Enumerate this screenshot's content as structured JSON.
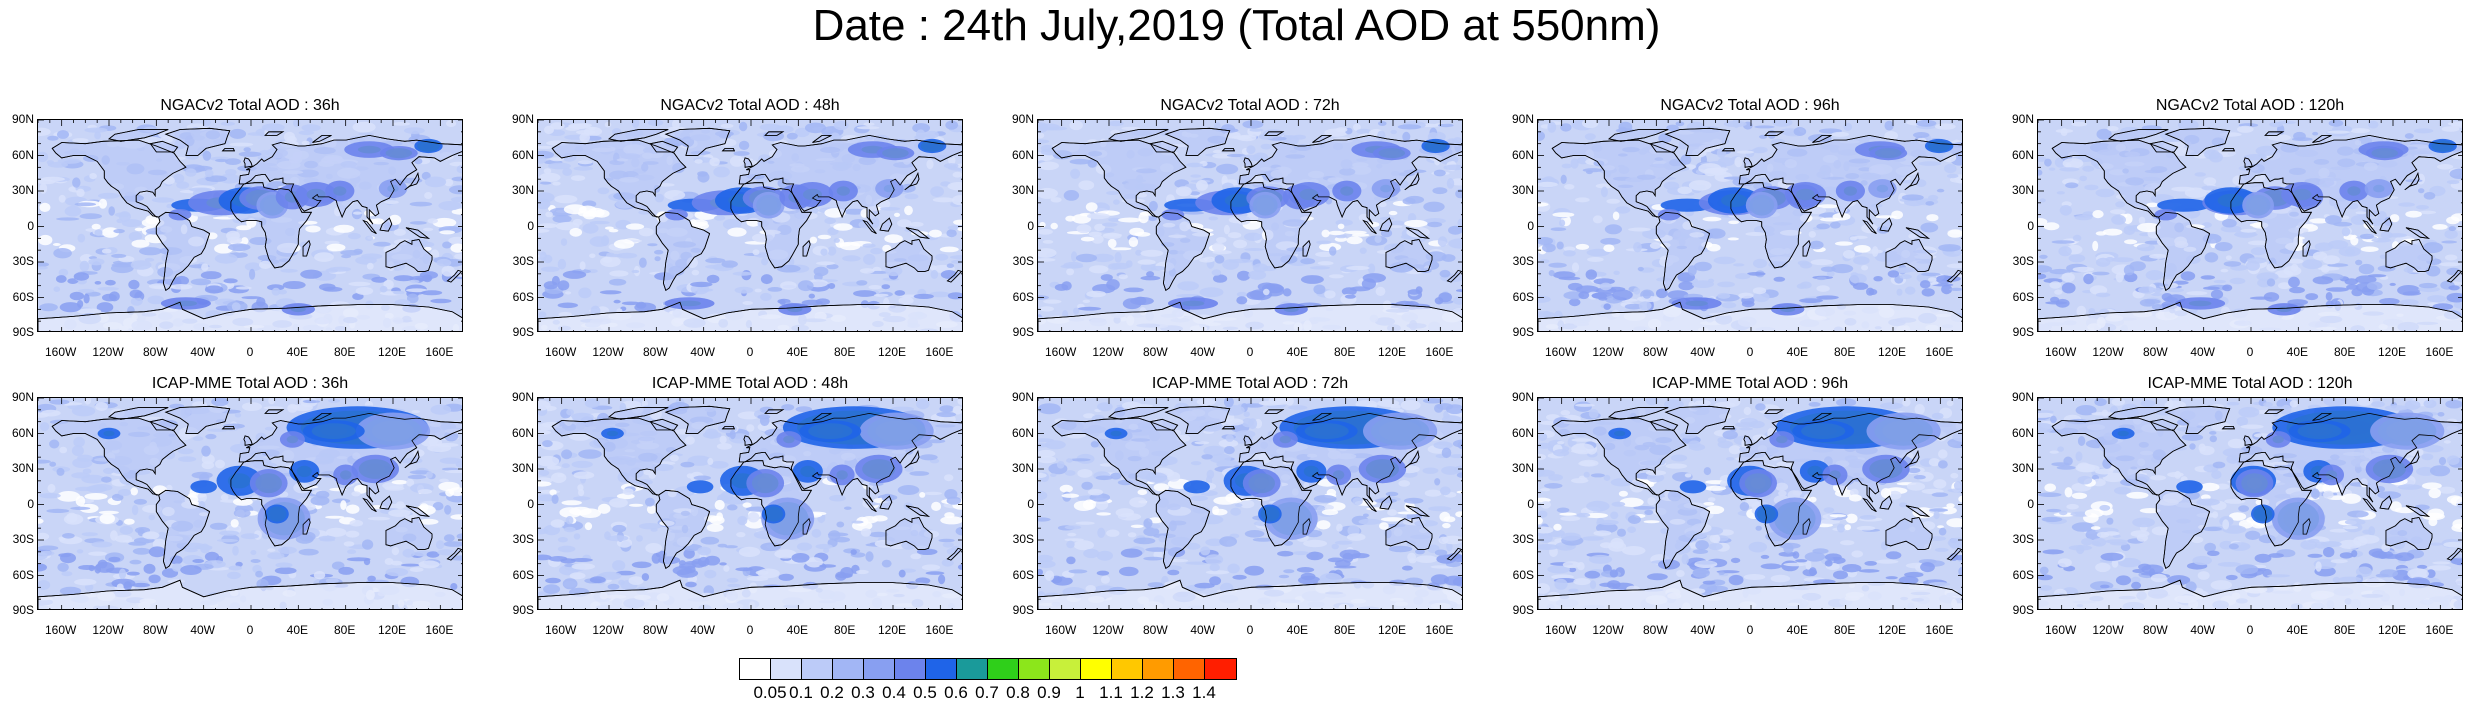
{
  "title": "Date : 24th July,2019 (Total AOD at 550nm)",
  "lat_labels": [
    "90N",
    "60N",
    "30N",
    "0",
    "30S",
    "60S",
    "90S"
  ],
  "lon_labels": [
    "160W",
    "120W",
    "80W",
    "40W",
    "0",
    "40E",
    "80E",
    "120E",
    "160E"
  ],
  "panels": [
    {
      "title": "NGACv2 Total AOD : 36h",
      "model": "NGACv2",
      "forecast_hour": 36
    },
    {
      "title": "NGACv2 Total AOD : 48h",
      "model": "NGACv2",
      "forecast_hour": 48
    },
    {
      "title": "NGACv2 Total AOD : 72h",
      "model": "NGACv2",
      "forecast_hour": 72
    },
    {
      "title": "NGACv2 Total AOD : 96h",
      "model": "NGACv2",
      "forecast_hour": 96
    },
    {
      "title": "NGACv2 Total AOD : 120h",
      "model": "NGACv2",
      "forecast_hour": 120
    },
    {
      "title": "ICAP-MME Total AOD : 36h",
      "model": "ICAP-MME",
      "forecast_hour": 36
    },
    {
      "title": "ICAP-MME Total AOD : 48h",
      "model": "ICAP-MME",
      "forecast_hour": 48
    },
    {
      "title": "ICAP-MME Total AOD : 72h",
      "model": "ICAP-MME",
      "forecast_hour": 72
    },
    {
      "title": "ICAP-MME Total AOD : 96h",
      "model": "ICAP-MME",
      "forecast_hour": 96
    },
    {
      "title": "ICAP-MME Total AOD : 120h",
      "model": "ICAP-MME",
      "forecast_hour": 120
    }
  ],
  "colorbar": {
    "labels": [
      "0.05",
      "0.1",
      "0.2",
      "0.3",
      "0.4",
      "0.5",
      "0.6",
      "0.7",
      "0.8",
      "0.9",
      "1",
      "1.1",
      "1.2",
      "1.3",
      "1.4"
    ],
    "colors": [
      "#ffffff",
      "#d9e2fb",
      "#bccbf8",
      "#a2b6f5",
      "#889ff1",
      "#6c83ec",
      "#1f64e8",
      "#1a9a9a",
      "#2fcf1a",
      "#8ce61b",
      "#c8f03a",
      "#ffff00",
      "#ffc800",
      "#ff9b00",
      "#ff6400",
      "#ff1e00"
    ]
  },
  "map_colors": {
    "ocean_base": "#c9d5f7",
    "land_base": "#b7c7f6",
    "polar": "#eef2fd",
    "coast": "#000000"
  }
}
